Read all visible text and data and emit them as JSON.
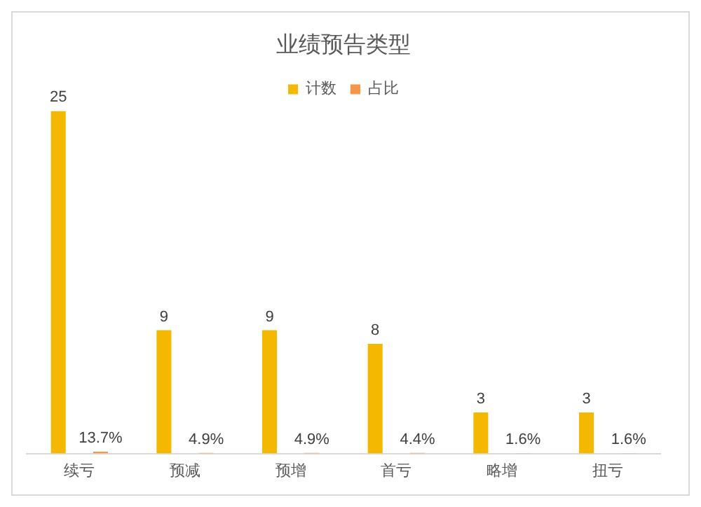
{
  "chart_data": {
    "type": "bar",
    "title": "业绩预告类型",
    "categories": [
      "续亏",
      "预减",
      "预增",
      "首亏",
      "略增",
      "扭亏"
    ],
    "series": [
      {
        "name": "计数",
        "color": "#f5b800",
        "values": [
          25,
          9,
          9,
          8,
          3,
          3
        ],
        "value_labels": [
          "25",
          "9",
          "9",
          "8",
          "3",
          "3"
        ]
      },
      {
        "name": "占比",
        "color": "#f79646",
        "values": [
          0.137,
          0.049,
          0.049,
          0.044,
          0.016,
          0.016
        ],
        "value_labels": [
          "13.7%",
          "4.9%",
          "4.9%",
          "4.4%",
          "1.6%",
          "1.6%"
        ]
      }
    ],
    "legend": "top",
    "grid": false,
    "tick_labels": "x"
  }
}
